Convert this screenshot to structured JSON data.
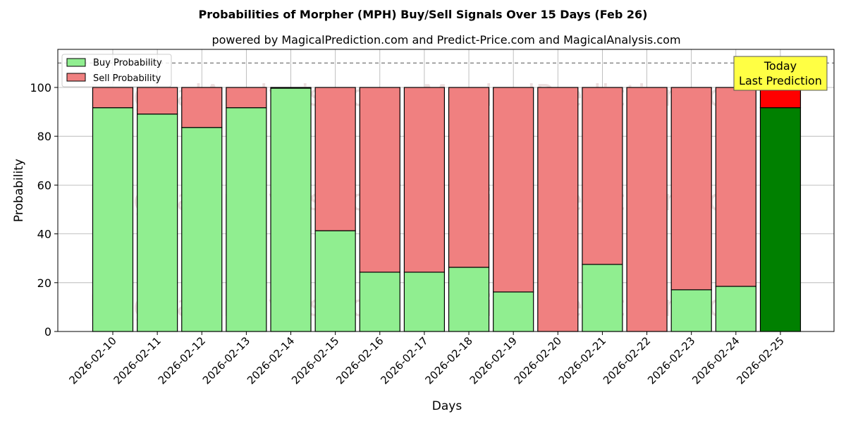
{
  "chart_data": {
    "type": "bar",
    "stacked": true,
    "title": "Probabilities of Morpher (MPH) Buy/Sell Signals Over 15 Days (Feb 26)",
    "subtitle": "powered by MagicalPrediction.com and Predict-Price.com and MagicalAnalysis.com",
    "xlabel": "Days",
    "ylabel": "Probability",
    "ylim": [
      0,
      115.6
    ],
    "yticks": [
      0,
      20,
      40,
      60,
      80,
      100
    ],
    "grid": true,
    "legend_placement": "top-left",
    "reference_line": 110,
    "categories": [
      "2026-02-10",
      "2026-02-11",
      "2026-02-12",
      "2026-02-13",
      "2026-02-14",
      "2026-02-15",
      "2026-02-16",
      "2026-02-17",
      "2026-02-18",
      "2026-02-19",
      "2026-02-20",
      "2026-02-21",
      "2026-02-22",
      "2026-02-23",
      "2026-02-24",
      "2026-02-25"
    ],
    "series": [
      {
        "name": "Buy Probability",
        "color": "#90ee90",
        "values": [
          91.7,
          89.1,
          83.6,
          91.7,
          99.7,
          41.3,
          24.3,
          24.3,
          26.3,
          16.2,
          0,
          27.5,
          0,
          17.1,
          18.5,
          91.7
        ]
      },
      {
        "name": "Sell Probability",
        "color": "#f08080",
        "values": [
          8.3,
          10.9,
          16.4,
          8.3,
          0.3,
          58.7,
          75.7,
          75.7,
          73.7,
          83.8,
          100,
          72.5,
          100,
          82.9,
          81.5,
          8.3
        ]
      }
    ],
    "highlight": {
      "index": 15,
      "buy_color": "#008000",
      "sell_color": "#ff0000",
      "label_line1": "Today",
      "label_line2": "Last Prediction"
    },
    "watermarks": [
      "MagicalAnalysis.com",
      "MagicalPrediction.com"
    ]
  }
}
